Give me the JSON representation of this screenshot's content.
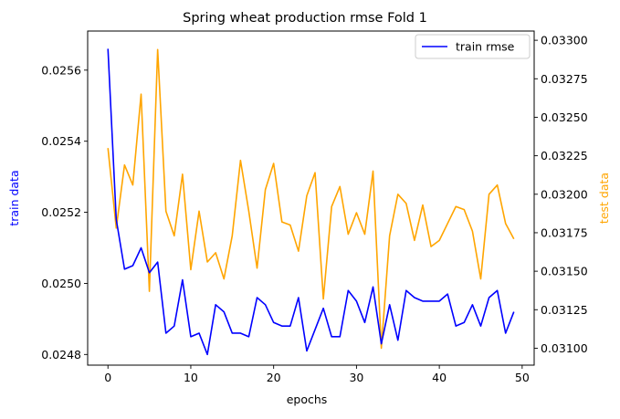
{
  "chart_data": {
    "type": "line",
    "title": "Spring wheat production rmse Fold 1",
    "xlabel": "epochs",
    "ylabel_left": "train data",
    "ylabel_right": "test data",
    "xlim": [
      -2.45,
      51.45
    ],
    "ylim_left": [
      0.02477,
      0.02571
    ],
    "ylim_right": [
      0.03089,
      0.03306
    ],
    "x_ticks": [
      0,
      10,
      20,
      30,
      40,
      50
    ],
    "y_left_ticks": [
      0.0248,
      0.025,
      0.0252,
      0.0254,
      0.0256
    ],
    "y_right_ticks": [
      0.031,
      0.03125,
      0.0315,
      0.03175,
      0.032,
      0.03225,
      0.0325,
      0.03275,
      0.033
    ],
    "legend": {
      "location": "top-right",
      "entries": [
        "train rmse"
      ]
    },
    "grid": false,
    "colors": {
      "train": "#0000ff",
      "test": "#ffa500",
      "ylabel_left": "#0000ff",
      "ylabel_right": "#ffa500"
    },
    "x": [
      0,
      1,
      2,
      3,
      4,
      5,
      6,
      7,
      8,
      9,
      10,
      11,
      12,
      13,
      14,
      15,
      16,
      17,
      18,
      19,
      20,
      21,
      22,
      23,
      24,
      25,
      26,
      27,
      28,
      29,
      30,
      31,
      32,
      33,
      34,
      35,
      36,
      37,
      38,
      39,
      40,
      41,
      42,
      43,
      44,
      45,
      46,
      47,
      48,
      49
    ],
    "series": [
      {
        "name": "train rmse",
        "axis": "left",
        "values": [
          0.02566,
          0.02518,
          0.02504,
          0.02505,
          0.0251,
          0.02503,
          0.02506,
          0.02486,
          0.02488,
          0.02501,
          0.02485,
          0.02486,
          0.0248,
          0.02494,
          0.02492,
          0.02486,
          0.02486,
          0.02485,
          0.02496,
          0.02494,
          0.02489,
          0.02488,
          0.02488,
          0.02496,
          0.02481,
          0.02487,
          0.02493,
          0.02485,
          0.02485,
          0.02498,
          0.02495,
          0.02489,
          0.02499,
          0.02483,
          0.02494,
          0.02484,
          0.02498,
          0.02496,
          0.02495,
          0.02495,
          0.02495,
          0.02497,
          0.02488,
          0.02489,
          0.02494,
          0.02488,
          0.02496,
          0.02498,
          0.02486,
          0.02492
        ]
      },
      {
        "axis": "right",
        "values": [
          0.0323,
          0.03178,
          0.03219,
          0.03206,
          0.03265,
          0.03137,
          0.03294,
          0.03189,
          0.03173,
          0.03213,
          0.03151,
          0.03189,
          0.03156,
          0.03162,
          0.03145,
          0.03173,
          0.03222,
          0.03189,
          0.03152,
          0.03203,
          0.0322,
          0.03182,
          0.0318,
          0.03163,
          0.03199,
          0.03214,
          0.03132,
          0.03192,
          0.03205,
          0.03174,
          0.03188,
          0.03174,
          0.03215,
          0.031,
          0.03173,
          0.032,
          0.03194,
          0.0317,
          0.03193,
          0.03166,
          0.0317,
          0.03181,
          0.03192,
          0.0319,
          0.03176,
          0.03145,
          0.032,
          0.03206,
          0.03181,
          0.03171
        ]
      }
    ]
  }
}
